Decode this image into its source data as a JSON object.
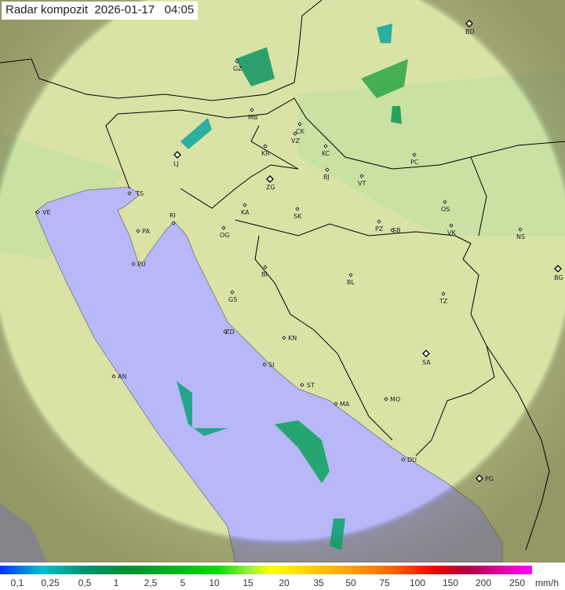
{
  "title": {
    "label": "Radar kompozit",
    "date": "2026-01-17",
    "time": "04:05"
  },
  "colors": {
    "land": "#d9e3a6",
    "land_low": "#c4e0a0",
    "sea": "#b8b8f8",
    "outside": "#8a8a60",
    "border": "#000000"
  },
  "cities": [
    {
      "code": "BD",
      "major": true
    },
    {
      "code": "GZ"
    },
    {
      "code": "MB"
    },
    {
      "code": "CK"
    },
    {
      "code": "VZ"
    },
    {
      "code": "KR"
    },
    {
      "code": "KC"
    },
    {
      "code": "LJ",
      "major": true
    },
    {
      "code": "BJ"
    },
    {
      "code": "PC"
    },
    {
      "code": "ZG",
      "major": true
    },
    {
      "code": "VT"
    },
    {
      "code": "TS"
    },
    {
      "code": "VE"
    },
    {
      "code": "KA"
    },
    {
      "code": "SK"
    },
    {
      "code": "OS"
    },
    {
      "code": "RI"
    },
    {
      "code": "PA"
    },
    {
      "code": "OG"
    },
    {
      "code": "PZ"
    },
    {
      "code": "SB"
    },
    {
      "code": "VK"
    },
    {
      "code": "NS"
    },
    {
      "code": "PU"
    },
    {
      "code": "BI"
    },
    {
      "code": "BL"
    },
    {
      "code": "BG",
      "major": true
    },
    {
      "code": "GS"
    },
    {
      "code": "TZ"
    },
    {
      "code": "ZD"
    },
    {
      "code": "KN"
    },
    {
      "code": "SA",
      "major": true
    },
    {
      "code": "SI"
    },
    {
      "code": "AN"
    },
    {
      "code": "ST"
    },
    {
      "code": "MA"
    },
    {
      "code": "MO"
    },
    {
      "code": "DU"
    },
    {
      "code": "PG",
      "major": true
    }
  ],
  "legend": {
    "ticks": [
      "0,1",
      "0,25",
      "0,5",
      "1",
      "2,5",
      "5",
      "10",
      "15",
      "20",
      "35",
      "50",
      "75",
      "100",
      "150",
      "200",
      "250"
    ],
    "unit": "mm/h"
  }
}
